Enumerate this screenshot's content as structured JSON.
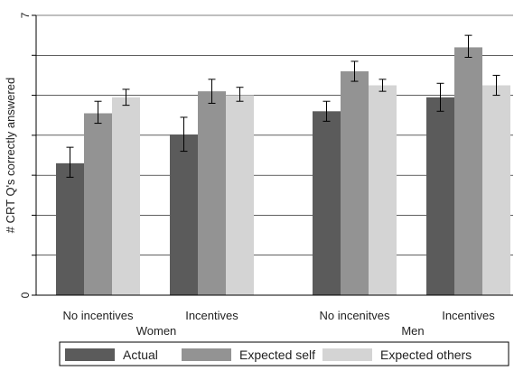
{
  "chart_data": {
    "type": "bar",
    "title": "",
    "xlabel": "",
    "ylabel": "# CRT Q's correctly answered",
    "ylim": [
      0,
      7
    ],
    "ytick_labels": [
      "0",
      "7"
    ],
    "yticks_minor": [
      1,
      2,
      3,
      4,
      5,
      6
    ],
    "grid": true,
    "legend_position": "bottom",
    "groups": [
      {
        "name": "Women",
        "subgroups": [
          "No incentives",
          "Incentives"
        ]
      },
      {
        "name": "Men",
        "subgroups": [
          "No incenitves",
          "Incentives"
        ]
      }
    ],
    "categories": [
      "No incentives",
      "Incentives",
      "No incenitves",
      "Incentives"
    ],
    "series": [
      {
        "name": "Actual",
        "color": "#5b5b5b",
        "values": [
          3.3,
          4.02,
          4.6,
          4.95
        ],
        "err_low": [
          2.95,
          3.6,
          4.35,
          4.6
        ],
        "err_high": [
          3.7,
          4.45,
          4.85,
          5.3
        ]
      },
      {
        "name": "Expected self",
        "color": "#939393",
        "values": [
          4.55,
          5.1,
          5.6,
          6.2
        ],
        "err_low": [
          4.3,
          4.8,
          5.35,
          5.95
        ],
        "err_high": [
          4.85,
          5.4,
          5.85,
          6.5
        ]
      },
      {
        "name": "Expected others",
        "color": "#d4d4d4",
        "values": [
          4.95,
          5.0,
          5.25,
          5.25
        ],
        "err_low": [
          4.75,
          4.85,
          5.1,
          5.0
        ],
        "err_high": [
          5.15,
          5.2,
          5.4,
          5.5
        ]
      }
    ]
  }
}
